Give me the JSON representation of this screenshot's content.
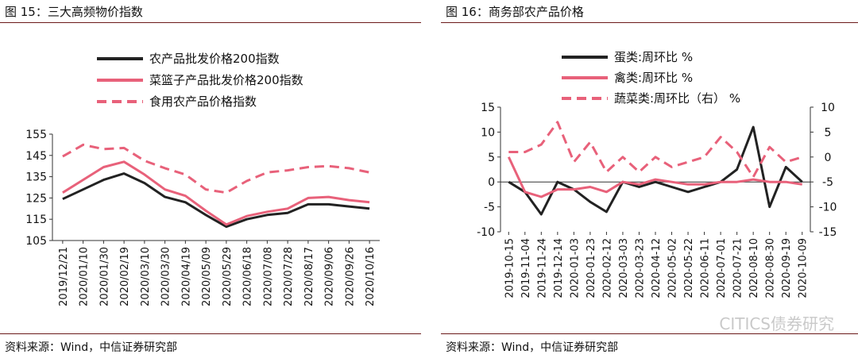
{
  "left": {
    "title": "图 15：三大高频物价指数",
    "source": "资料来源：Wind，中信证券研究部"
  },
  "right": {
    "title": "图 16：商务部农产品价格",
    "source": "资料来源：Wind，中信证券研究部"
  },
  "watermark": "CITICS债券研究",
  "colors": {
    "black": "#222222",
    "pink": "#e8617a",
    "rule": "#6b1a1a"
  },
  "chart_data": [
    {
      "type": "line",
      "title": "",
      "ylim": [
        105,
        155
      ],
      "yticks": [
        105,
        115,
        125,
        135,
        145,
        155
      ],
      "x": [
        "2019/12/21",
        "2020/01/10",
        "2020/01/30",
        "2020/02/19",
        "2020/03/10",
        "2020/03/30",
        "2020/04/19",
        "2020/05/09",
        "2020/05/29",
        "2020/06/18",
        "2020/07/08",
        "2020/07/28",
        "2020/08/17",
        "2020/09/06",
        "2020/09/26",
        "2020/10/16"
      ],
      "legend": "top-left",
      "series": [
        {
          "name": "农产品批发价格200指数",
          "style": "solid-black",
          "values": [
            124.5,
            129,
            133.5,
            136.5,
            132,
            125.5,
            123,
            117,
            111.5,
            115,
            117,
            118,
            122,
            122,
            121,
            120
          ]
        },
        {
          "name": "菜篮子产品批发价格200指数",
          "style": "solid-pink",
          "values": [
            127.5,
            133.5,
            139.5,
            142,
            136,
            129,
            126,
            119,
            112.5,
            116.5,
            118.5,
            120,
            125,
            125.5,
            124,
            123
          ]
        },
        {
          "name": "食用农产品价格指数",
          "style": "dashed-pink",
          "values": [
            144.5,
            150,
            148,
            148.5,
            142.5,
            139,
            136,
            129,
            127.5,
            133,
            137,
            138,
            139.5,
            140,
            139,
            137
          ]
        }
      ]
    },
    {
      "type": "line",
      "title": "",
      "ylim": [
        -10,
        15
      ],
      "yticks": [
        -10,
        -5,
        0,
        5,
        10,
        15
      ],
      "y2lim": [
        -15,
        10
      ],
      "y2ticks": [
        -15,
        -10,
        -5,
        0,
        5,
        10
      ],
      "x": [
        "2019-10-15",
        "2019-11-04",
        "2019-11-24",
        "2019-12-14",
        "2020-01-03",
        "2020-01-23",
        "2020-02-12",
        "2020-03-03",
        "2020-03-23",
        "2020-04-12",
        "2020-05-02",
        "2020-05-22",
        "2020-06-11",
        "2020-07-01",
        "2020-07-21",
        "2020-08-10",
        "2020-08-30",
        "2020-09-19",
        "2020-10-09"
      ],
      "legend": "top-left",
      "series": [
        {
          "name": "蛋类:周环比 %",
          "style": "solid-black",
          "axis": "left",
          "values": [
            0,
            -2,
            -6.5,
            0,
            -1.5,
            -4,
            -6,
            0,
            -1,
            0,
            -1,
            -2,
            -1,
            0,
            2.5,
            11,
            -5,
            3,
            0
          ]
        },
        {
          "name": "禽类:周环比 %",
          "style": "solid-pink",
          "axis": "left",
          "values": [
            5,
            -2,
            -3,
            -1.5,
            -1.5,
            -1,
            -2,
            0,
            -0.5,
            0.5,
            0,
            -0.5,
            -0.5,
            0,
            0,
            0.5,
            0,
            0,
            -0.5
          ]
        },
        {
          "name": "蔬菜类:周环比（右） %",
          "style": "dashed-pink",
          "axis": "right",
          "values": [
            1,
            1,
            2.5,
            7,
            -1,
            3,
            -3,
            0,
            -3,
            0,
            -2,
            -1,
            0,
            4,
            1,
            -4,
            2,
            -1,
            0
          ]
        }
      ]
    }
  ]
}
